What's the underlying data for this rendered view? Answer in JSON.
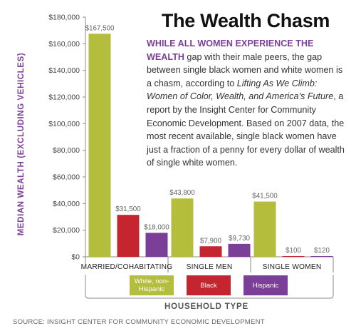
{
  "figure": {
    "title": "The Wealth Chasm",
    "text_lead": "WHILE ALL WOMEN EXPERIENCE THE WEALTH",
    "text_part1": " gap with their male peers, the gap between single black women and white women is a chasm, according to ",
    "text_italic": "Lifting As We Climb: Women of Color, Wealth, and America’s Future",
    "text_part2": ", a report by the Insight Center for Community Economic Development. Based on 2007 data, the most recent available, single black women have just a fraction of a penny for every dollar of wealth of single white women.",
    "source": "SOURCE: INSIGHT CENTER FOR COMMUNITY ECONOMIC DEVELOPMENT"
  },
  "chart_data": {
    "type": "bar",
    "categories": [
      "MARRIED/COHABITATING",
      "SINGLE MEN",
      "SINGLE WOMEN"
    ],
    "series": [
      {
        "name": "White, non-Hispanic",
        "color": "#b5be3c",
        "values": [
          167500,
          43800,
          41500
        ],
        "labels": [
          "$167,500",
          "$43,800",
          "$41,500"
        ]
      },
      {
        "name": "Black",
        "color": "#c4252e",
        "values": [
          31500,
          7900,
          100
        ],
        "labels": [
          "$31,500",
          "$7,900",
          "$100"
        ]
      },
      {
        "name": "Hispanic",
        "color": "#7b3f98",
        "values": [
          18000,
          9730,
          120
        ],
        "labels": [
          "$18,000",
          "$9,730",
          "$120"
        ]
      }
    ],
    "ylabel": "MEDIAN WEALTH (EXCLUDING VEHICLES)",
    "xlabel": "HOUSEHOLD TYPE",
    "ylim": [
      0,
      180000
    ],
    "yticks": [
      0,
      20000,
      40000,
      60000,
      80000,
      100000,
      120000,
      140000,
      160000,
      180000
    ],
    "ytick_labels": [
      "$0",
      "$20,000",
      "$40,000",
      "$60,000",
      "$80,000",
      "$100,000",
      "$120,000",
      "$140,000",
      "$160,000",
      "$180,000"
    ],
    "grid": false,
    "legend": "bottom"
  }
}
